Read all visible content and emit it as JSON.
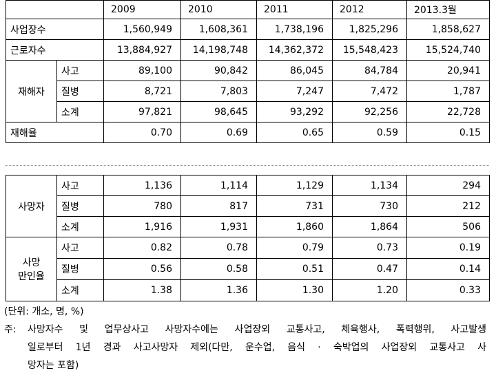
{
  "table1": {
    "columns": [
      "2009",
      "2010",
      "2011",
      "2012",
      "2013.3월"
    ],
    "rows": [
      {
        "label": "사업장수",
        "values": [
          "1,560,949",
          "1,608,361",
          "1,738,196",
          "1,825,296",
          "1,858,627"
        ]
      },
      {
        "label": "근로자수",
        "values": [
          "13,884,927",
          "14,198,748",
          "14,362,372",
          "15,548,423",
          "15,524,740"
        ]
      },
      {
        "label": "재해자",
        "subrows": [
          {
            "label": "사고",
            "values": [
              "89,100",
              "90,842",
              "86,045",
              "84,784",
              "20,941"
            ]
          },
          {
            "label": "질병",
            "values": [
              "8,721",
              "7,803",
              "7,247",
              "7,472",
              "1,787"
            ]
          },
          {
            "label": "소계",
            "values": [
              "97,821",
              "98,645",
              "93,292",
              "92,256",
              "22,728"
            ]
          }
        ]
      },
      {
        "label": "재해율",
        "values": [
          "0.70",
          "0.69",
          "0.65",
          "0.59",
          "0.15"
        ]
      }
    ]
  },
  "table2": {
    "rows": [
      {
        "label": "사망자",
        "subrows": [
          {
            "label": "사고",
            "values": [
              "1,136",
              "1,114",
              "1,129",
              "1,134",
              "294"
            ]
          },
          {
            "label": "질병",
            "values": [
              "780",
              "817",
              "731",
              "730",
              "212"
            ]
          },
          {
            "label": "소계",
            "values": [
              "1,916",
              "1,931",
              "1,860",
              "1,864",
              "506"
            ]
          }
        ]
      },
      {
        "label_lines": [
          "사망",
          "만인율"
        ],
        "subrows": [
          {
            "label": "사고",
            "values": [
              "0.82",
              "0.78",
              "0.79",
              "0.73",
              "0.19"
            ]
          },
          {
            "label": "질병",
            "values": [
              "0.56",
              "0.58",
              "0.51",
              "0.47",
              "0.14"
            ]
          },
          {
            "label": "소계",
            "values": [
              "1.38",
              "1.36",
              "1.30",
              "1.20",
              "0.33"
            ]
          }
        ]
      }
    ]
  },
  "unit": "(단위: 개소, 명, %)",
  "note": {
    "prefix": "주:",
    "lines": [
      "사망자수 및 업무상사고 사망자수에는 사업장외 교통사고, 체육행사, 폭력행위, 사고발생",
      "일로부터 1년 경과 사고사망자 제외(다만, 운수업, 음식 · 숙박업의 사업장외 교통사고 사",
      "망자는 포함)"
    ]
  }
}
